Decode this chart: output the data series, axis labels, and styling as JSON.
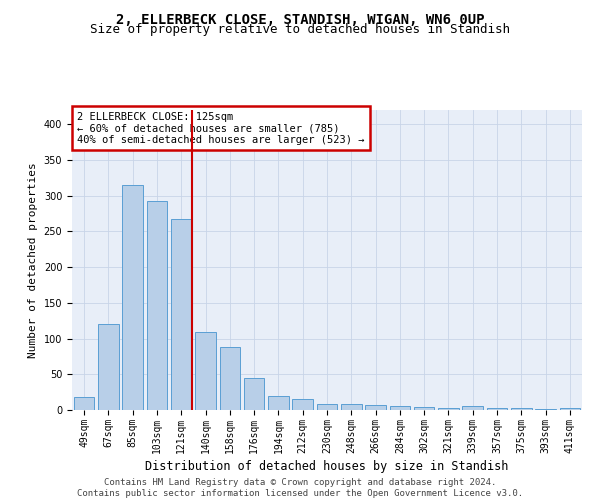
{
  "title": "2, ELLERBECK CLOSE, STANDISH, WIGAN, WN6 0UP",
  "subtitle": "Size of property relative to detached houses in Standish",
  "xlabel": "Distribution of detached houses by size in Standish",
  "ylabel": "Number of detached properties",
  "categories": [
    "49sqm",
    "67sqm",
    "85sqm",
    "103sqm",
    "121sqm",
    "140sqm",
    "158sqm",
    "176sqm",
    "194sqm",
    "212sqm",
    "230sqm",
    "248sqm",
    "266sqm",
    "284sqm",
    "302sqm",
    "321sqm",
    "339sqm",
    "357sqm",
    "375sqm",
    "393sqm",
    "411sqm"
  ],
  "values": [
    18,
    120,
    315,
    293,
    267,
    109,
    88,
    45,
    20,
    15,
    9,
    8,
    7,
    6,
    4,
    3,
    5,
    3,
    3,
    2,
    3
  ],
  "bar_color": "#b8cfe8",
  "bar_edge_color": "#5a9fd4",
  "bar_edge_width": 0.7,
  "vline_color": "#cc0000",
  "vline_linewidth": 1.5,
  "annotation_box_text": "2 ELLERBECK CLOSE: 125sqm\n← 60% of detached houses are smaller (785)\n40% of semi-detached houses are larger (523) →",
  "annotation_box_color": "white",
  "annotation_box_edge_color": "#cc0000",
  "ylim": [
    0,
    420
  ],
  "yticks": [
    0,
    50,
    100,
    150,
    200,
    250,
    300,
    350,
    400
  ],
  "grid_color": "#c8d4e8",
  "background_color": "#e8eef8",
  "footer_text": "Contains HM Land Registry data © Crown copyright and database right 2024.\nContains public sector information licensed under the Open Government Licence v3.0.",
  "title_fontsize": 10,
  "subtitle_fontsize": 9,
  "xlabel_fontsize": 8.5,
  "ylabel_fontsize": 8,
  "tick_fontsize": 7,
  "footer_fontsize": 6.5,
  "annot_fontsize": 7.5
}
